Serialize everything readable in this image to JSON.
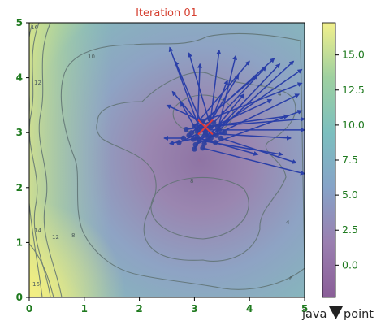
{
  "chart_data": {
    "type": "scatter",
    "title": "Iteration 01",
    "xlim": [
      0,
      5
    ],
    "ylim": [
      0,
      5
    ],
    "x_ticks": [
      "0",
      "1",
      "2",
      "3",
      "4",
      "5"
    ],
    "y_ticks": [
      "0",
      "1",
      "2",
      "3",
      "4",
      "5"
    ],
    "grid": false,
    "contour_levels": [
      "4",
      "6",
      "8",
      "10",
      "12",
      "14",
      "16"
    ],
    "colorbar": {
      "range": [
        -2.3,
        17.3
      ],
      "ticks": [
        "0.0",
        "2.5",
        "5.0",
        "7.5",
        "10.0",
        "12.5",
        "15.0"
      ],
      "colors": [
        "#8a5e98",
        "#9a7fb0",
        "#86a3c8",
        "#7cbfbf",
        "#9ed0a0",
        "#f2f08c"
      ]
    },
    "global_minimum": {
      "x": 3.2,
      "y": 3.1
    },
    "particles": [
      [
        3.1,
        3.05
      ],
      [
        3.2,
        3.0
      ],
      [
        3.3,
        3.1
      ],
      [
        3.05,
        2.92
      ],
      [
        3.25,
        2.88
      ],
      [
        3.4,
        2.95
      ],
      [
        3.0,
        3.12
      ],
      [
        3.15,
        3.2
      ],
      [
        3.35,
        3.18
      ],
      [
        2.95,
        3.0
      ],
      [
        3.18,
        2.8
      ],
      [
        3.45,
        3.05
      ],
      [
        3.08,
        2.85
      ],
      [
        3.28,
        3.25
      ],
      [
        3.02,
        2.78
      ],
      [
        3.38,
        2.82
      ],
      [
        3.12,
        3.1
      ],
      [
        3.22,
        3.05
      ],
      [
        3.32,
        2.98
      ],
      [
        2.98,
        2.88
      ],
      [
        3.48,
        2.9
      ],
      [
        3.15,
        2.72
      ],
      [
        2.9,
        2.95
      ],
      [
        3.42,
        3.12
      ],
      [
        3.2,
        2.95
      ],
      [
        3.05,
        3.02
      ],
      [
        3.3,
        2.9
      ],
      [
        3.25,
        3.15
      ],
      [
        2.8,
        2.9
      ],
      [
        3.55,
        3.0
      ],
      [
        3.0,
        2.7
      ],
      [
        2.72,
        2.82
      ],
      [
        2.85,
        3.06
      ]
    ],
    "velocity_targets": [
      [
        2.55,
        4.55
      ],
      [
        2.65,
        4.3
      ],
      [
        2.9,
        4.45
      ],
      [
        3.1,
        4.25
      ],
      [
        3.45,
        4.5
      ],
      [
        3.75,
        4.4
      ],
      [
        4.0,
        4.3
      ],
      [
        4.15,
        4.05
      ],
      [
        4.3,
        4.2
      ],
      [
        4.45,
        4.35
      ],
      [
        4.55,
        4.25
      ],
      [
        4.8,
        4.3
      ],
      [
        4.95,
        4.15
      ],
      [
        4.95,
        3.9
      ],
      [
        4.9,
        3.7
      ],
      [
        4.95,
        3.4
      ],
      [
        5.0,
        3.25
      ],
      [
        5.0,
        3.05
      ],
      [
        4.75,
        2.9
      ],
      [
        4.6,
        2.6
      ],
      [
        4.85,
        2.45
      ],
      [
        5.0,
        2.25
      ],
      [
        4.15,
        2.6
      ],
      [
        3.9,
        3.7
      ],
      [
        3.6,
        3.95
      ],
      [
        2.75,
        3.55
      ],
      [
        2.6,
        3.75
      ],
      [
        2.5,
        3.5
      ],
      [
        2.45,
        2.9
      ],
      [
        2.55,
        2.8
      ],
      [
        3.8,
        4.05
      ],
      [
        4.4,
        3.6
      ],
      [
        4.7,
        3.3
      ]
    ]
  },
  "watermark": {
    "text_before": "java",
    "text_after": "point"
  }
}
